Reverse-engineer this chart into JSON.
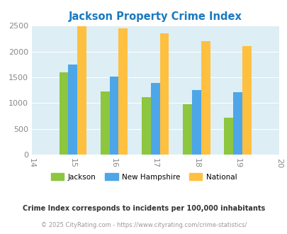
{
  "title": "Jackson Property Crime Index",
  "years": [
    2015,
    2016,
    2017,
    2018,
    2019
  ],
  "jackson": [
    1600,
    1230,
    1110,
    975,
    710
  ],
  "new_hampshire": [
    1750,
    1510,
    1390,
    1250,
    1210
  ],
  "national": [
    2490,
    2450,
    2350,
    2200,
    2100
  ],
  "bar_colors": {
    "jackson": "#8dc63f",
    "new_hampshire": "#4da6e8",
    "national": "#ffc040"
  },
  "xlim": [
    2014,
    2020
  ],
  "ylim": [
    0,
    2500
  ],
  "yticks": [
    0,
    500,
    1000,
    1500,
    2000,
    2500
  ],
  "xticks": [
    2014,
    2015,
    2016,
    2017,
    2018,
    2019,
    2020
  ],
  "xticklabels": [
    "14",
    "15",
    "16",
    "17",
    "18",
    "19",
    "20"
  ],
  "bg_color": "#ddeef4",
  "legend_labels": [
    "Jackson",
    "New Hampshire",
    "National"
  ],
  "footnote1": "Crime Index corresponds to incidents per 100,000 inhabitants",
  "footnote2": "© 2025 CityRating.com - https://www.cityrating.com/crime-statistics/",
  "title_color": "#1a7abf",
  "footnote1_color": "#333333",
  "footnote2_color": "#999999",
  "bar_width": 0.22
}
